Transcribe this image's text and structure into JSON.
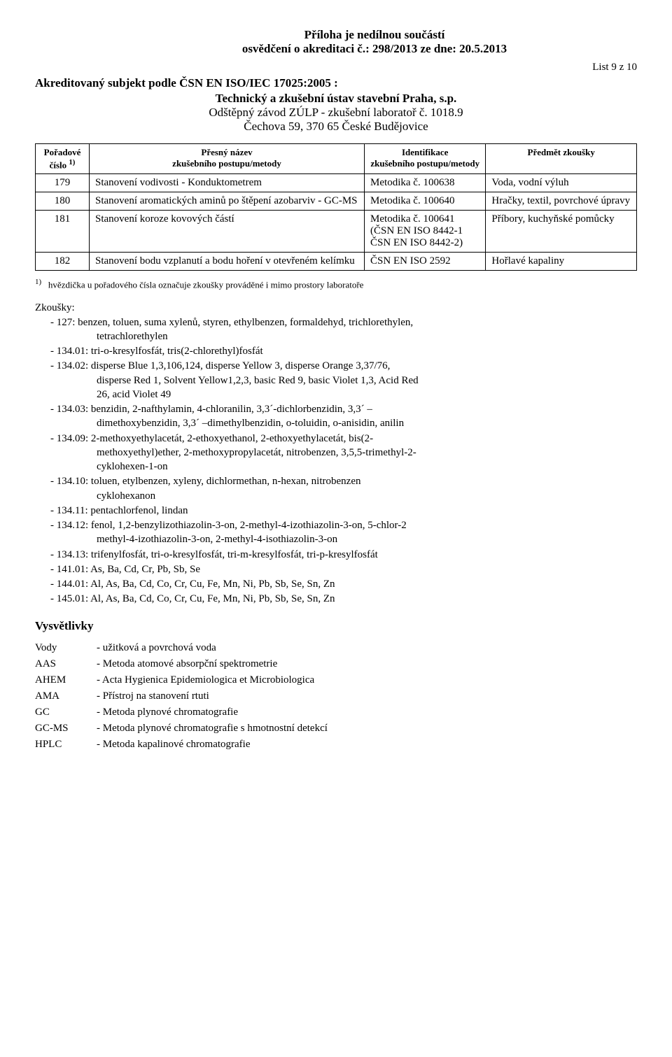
{
  "header": {
    "line1": "Příloha je nedílnou součástí",
    "line2": "osvědčení o akreditaci č.: 298/2013 ze dne: 20.5.2013",
    "page": "List 9 z 10"
  },
  "subject": {
    "line1": "Akreditovaný subjekt podle ČSN EN ISO/IEC 17025:2005 :",
    "line2": "Technický a zkušební ústav stavební Praha, s.p.",
    "line3": "Odštěpný závod ZÚLP - zkušební laboratoř č. 1018.9",
    "line4": "Čechova 59, 370 65 České Budějovice"
  },
  "table": {
    "headers": {
      "col1a": "Pořadové",
      "col1b": "číslo",
      "col1sup": "1)",
      "col2a": "Přesný název",
      "col2b": "zkušebního postupu/metody",
      "col3a": "Identifikace",
      "col3b": "zkušebního postupu/metody",
      "col4": "Předmět zkoušky"
    },
    "rows": [
      {
        "num": "179",
        "name": "Stanovení vodivosti - Konduktometrem",
        "ident": "Metodika č. 100638",
        "subj": "Voda, vodní výluh"
      },
      {
        "num": "180",
        "name": "Stanovení aromatických aminů po štěpení azobarviv - GC-MS",
        "ident": "Metodika č. 100640",
        "subj": "Hračky, textil, povrchové úpravy"
      },
      {
        "num": "181",
        "name": "Stanovení koroze kovových částí",
        "ident": "Metodika č. 100641\n(ČSN EN ISO 8442-1\nČSN EN ISO 8442-2)",
        "subj": "Příbory, kuchyňské pomůcky"
      },
      {
        "num": "182",
        "name": "Stanovení bodu vzplanutí a bodu hoření v otevřeném kelímku",
        "ident": "ČSN EN ISO 2592",
        "subj": "Hořlavé kapaliny"
      }
    ]
  },
  "footnote": "hvězdička u pořadového čísla označuje zkoušky prováděné i mimo prostory laboratoře",
  "footnote_marker": "1)",
  "zkousky": {
    "title": "Zkoušky:",
    "items": [
      {
        "main": "127: benzen, toluen, suma xylenů, styren, ethylbenzen, formaldehyd, trichlorethylen,",
        "sub": [
          "tetrachlorethylen"
        ]
      },
      {
        "main": "134.01: tri-o-kresylfosfát, tris(2-chlorethyl)fosfát"
      },
      {
        "main": "134.02: disperse Blue 1,3,106,124, disperse Yellow 3, disperse Orange 3,37/76,",
        "sub": [
          "disperse Red 1, Solvent Yellow1,2,3, basic Red 9, basic Violet 1,3, Acid Red",
          "26, acid Violet 49"
        ]
      },
      {
        "main": "134.03: benzidin, 2-nafthylamin, 4-chloranilin, 3,3´-dichlorbenzidin, 3,3´ –",
        "sub": [
          "dimethoxybenzidin, 3,3´ –dimethylbenzidin, o-toluidin, o-anisidin, anilin"
        ]
      },
      {
        "main": "134.09: 2-methoxyethylacetát, 2-ethoxyethanol, 2-ethoxyethylacetát, bis(2-",
        "sub": [
          "methoxyethyl)ether, 2-methoxypropylacetát, nitrobenzen, 3,5,5-trimethyl-2-",
          "cyklohexen-1-on"
        ]
      },
      {
        "main": "134.10: toluen, etylbenzen, xyleny, dichlormethan, n-hexan, nitrobenzen",
        "sub": [
          "cyklohexanon"
        ]
      },
      {
        "main": "134.11: pentachlorfenol, lindan"
      },
      {
        "main": "134.12: fenol, 1,2-benzylizothiazolin-3-on, 2-methyl-4-izothiazolin-3-on, 5-chlor-2",
        "sub": [
          "methyl-4-izothiazolin-3-on, 2-methyl-4-isothiazolin-3-on"
        ]
      },
      {
        "main": "134.13: trifenylfosfát, tri-o-kresylfosfát, tri-m-kresylfosfát, tri-p-kresylfosfát"
      },
      {
        "main": "141.01: As, Ba, Cd, Cr, Pb, Sb, Se"
      },
      {
        "main": "144.01: Al, As, Ba, Cd, Co, Cr, Cu, Fe, Mn, Ni, Pb, Sb, Se, Sn, Zn"
      },
      {
        "main": "145.01: Al, As, Ba, Cd, Co, Cr, Cu, Fe, Mn, Ni, Pb, Sb, Se, Sn, Zn"
      }
    ]
  },
  "vysvetlivky": {
    "title": "Vysvětlivky",
    "defs": [
      {
        "term": "Vody",
        "def": "- užitková a povrchová voda"
      },
      {
        "term": "AAS",
        "def": "- Metoda atomové absorpční spektrometrie"
      },
      {
        "term": "AHEM",
        "def": "- Acta Hygienica Epidemiologica et Microbiologica"
      },
      {
        "term": "AMA",
        "def": "- Přístroj na stanovení rtuti"
      },
      {
        "term": "GC",
        "def": "- Metoda plynové chromatografie"
      },
      {
        "term": "GC-MS",
        "def": "- Metoda plynové chromatografie s hmotnostní detekcí"
      },
      {
        "term": "HPLC",
        "def": "- Metoda kapalinové chromatografie"
      }
    ]
  }
}
